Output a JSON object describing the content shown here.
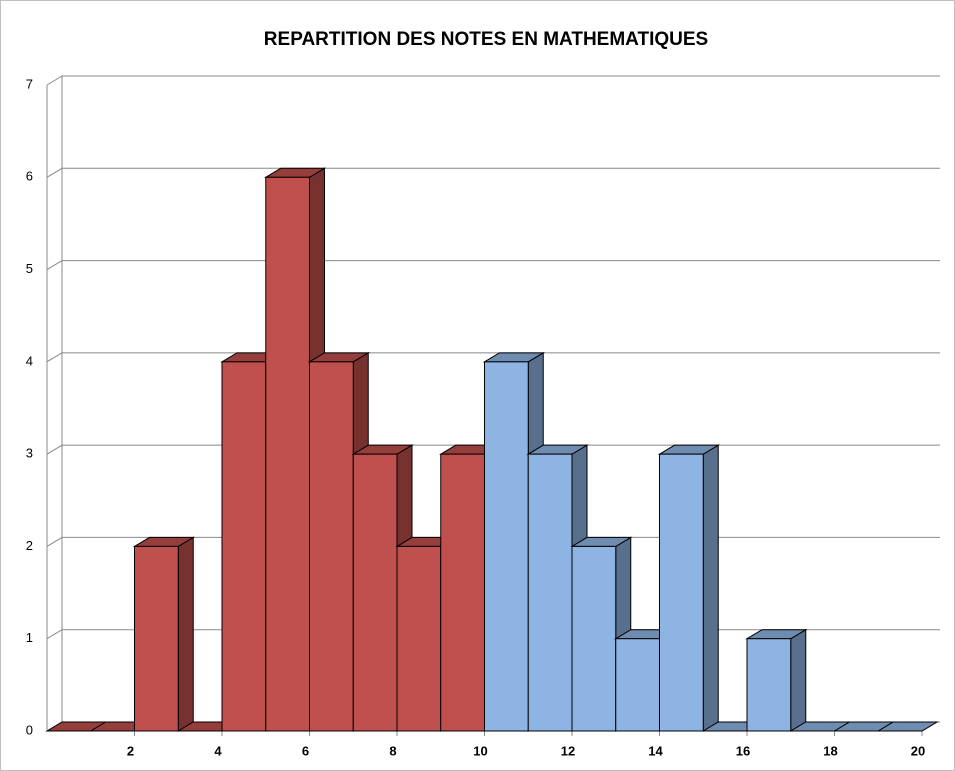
{
  "chart_data": {
    "type": "histogram",
    "title": "REPARTITION DES NOTES EN MATHEMATIQUES",
    "series": [
      {
        "color": "#c0504d",
        "bins": [
          0,
          1,
          2,
          3,
          4,
          5,
          6,
          7,
          8,
          9,
          10
        ],
        "values": [
          0,
          0,
          2,
          0,
          4,
          6,
          4,
          3,
          2,
          3
        ]
      },
      {
        "color": "#8eb4e3",
        "bins": [
          10,
          11,
          12,
          13,
          14,
          15,
          16,
          17,
          18,
          19,
          20
        ],
        "values": [
          4,
          3,
          2,
          1,
          3,
          0,
          1,
          0,
          0,
          0
        ]
      }
    ],
    "xlim": [
      0,
      20
    ],
    "xticks": [
      2,
      4,
      6,
      8,
      10,
      12,
      14,
      16,
      18,
      20
    ],
    "ylim": [
      0,
      7
    ],
    "yticks": [
      0,
      1,
      2,
      3,
      4,
      5,
      6,
      7
    ],
    "grid": true
  }
}
